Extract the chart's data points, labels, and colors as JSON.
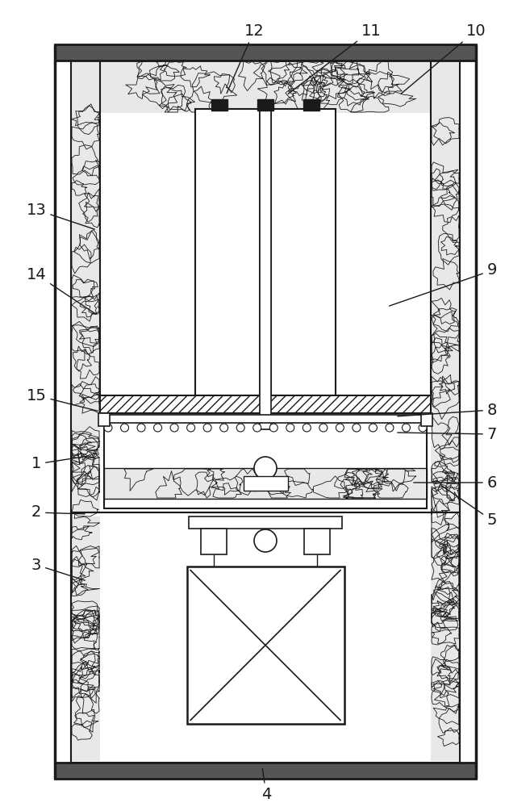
{
  "bg_color": "#ffffff",
  "lc": "#1a1a1a",
  "fig_width": 6.57,
  "fig_height": 10.0,
  "dpi": 100
}
